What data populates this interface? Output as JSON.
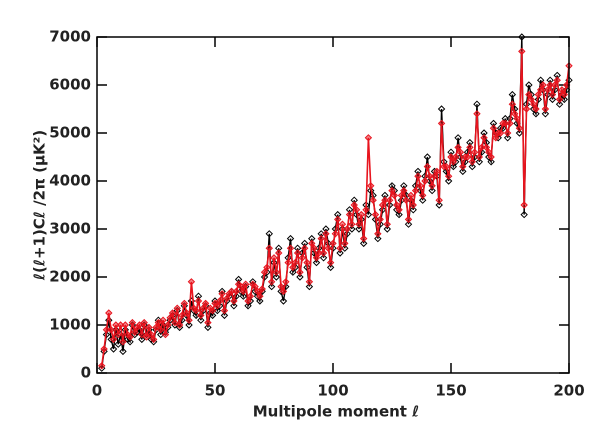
{
  "chart_data": {
    "type": "line",
    "xlabel": "Multipole moment ℓ",
    "ylabel": "ℓ(ℓ+1)Cℓ /2π (μK²)",
    "xlim": [
      0,
      200
    ],
    "ylim": [
      0,
      7000
    ],
    "xticks": [
      0,
      50,
      100,
      150,
      200
    ],
    "yticks": [
      0,
      1000,
      2000,
      3000,
      4000,
      5000,
      6000,
      7000
    ],
    "x": [
      2,
      3,
      4,
      5,
      6,
      7,
      8,
      9,
      10,
      11,
      12,
      13,
      14,
      15,
      16,
      17,
      18,
      19,
      20,
      21,
      22,
      23,
      24,
      25,
      26,
      27,
      28,
      29,
      30,
      31,
      32,
      33,
      34,
      35,
      36,
      37,
      38,
      39,
      40,
      41,
      42,
      43,
      44,
      45,
      46,
      47,
      48,
      49,
      50,
      51,
      52,
      53,
      54,
      55,
      56,
      57,
      58,
      59,
      60,
      61,
      62,
      63,
      64,
      65,
      66,
      67,
      68,
      69,
      70,
      71,
      72,
      73,
      74,
      75,
      76,
      77,
      78,
      79,
      80,
      81,
      82,
      83,
      84,
      85,
      86,
      87,
      88,
      89,
      90,
      91,
      92,
      93,
      94,
      95,
      96,
      97,
      98,
      99,
      100,
      101,
      102,
      103,
      104,
      105,
      106,
      107,
      108,
      109,
      110,
      111,
      112,
      113,
      114,
      115,
      116,
      117,
      118,
      119,
      120,
      121,
      122,
      123,
      124,
      125,
      126,
      127,
      128,
      129,
      130,
      131,
      132,
      133,
      134,
      135,
      136,
      137,
      138,
      139,
      140,
      141,
      142,
      143,
      144,
      145,
      146,
      147,
      148,
      149,
      150,
      151,
      152,
      153,
      154,
      155,
      156,
      157,
      158,
      159,
      160,
      161,
      162,
      163,
      164,
      165,
      166,
      167,
      168,
      169,
      170,
      171,
      172,
      173,
      174,
      175,
      176,
      177,
      178,
      179,
      180,
      181,
      182,
      183,
      184,
      185,
      186,
      187,
      188,
      189,
      190,
      191,
      192,
      193,
      194,
      195,
      196,
      197,
      198,
      199,
      200
    ],
    "series": [
      {
        "color": "#000000",
        "values": [
          100,
          450,
          800,
          1100,
          700,
          500,
          900,
          600,
          800,
          450,
          900,
          700,
          650,
          1000,
          800,
          850,
          900,
          700,
          1000,
          800,
          900,
          700,
          650,
          900,
          1100,
          800,
          1000,
          850,
          950,
          1100,
          1200,
          1000,
          1300,
          950,
          1100,
          1400,
          1200,
          1000,
          1500,
          1300,
          1200,
          1600,
          1100,
          1300,
          1400,
          950,
          1250,
          1200,
          1500,
          1300,
          1400,
          1700,
          1200,
          1500,
          1600,
          1700,
          1400,
          1600,
          1950,
          1700,
          1600,
          1800,
          1400,
          1500,
          1900,
          1700,
          1600,
          1500,
          1700,
          2000,
          2100,
          2900,
          1800,
          2300,
          2000,
          2600,
          1700,
          1500,
          1800,
          2400,
          2800,
          2100,
          2200,
          2600,
          2000,
          2500,
          2700,
          2200,
          1800,
          2800,
          2500,
          2300,
          2600,
          2900,
          2400,
          3000,
          2700,
          2200,
          2600,
          3000,
          3300,
          2500,
          3000,
          2600,
          2900,
          3400,
          3000,
          3600,
          3300,
          3000,
          3200,
          2700,
          3500,
          3300,
          3800,
          3700,
          3200,
          2800,
          3100,
          3400,
          3700,
          3000,
          3500,
          3900,
          3800,
          3400,
          3300,
          3600,
          3900,
          3700,
          3100,
          3600,
          3400,
          3900,
          4200,
          3800,
          3600,
          4100,
          4500,
          4000,
          3800,
          4200,
          4100,
          3500,
          5500,
          4400,
          4200,
          4000,
          4600,
          4300,
          4400,
          4900,
          4500,
          4200,
          4400,
          4600,
          4800,
          4300,
          4500,
          5600,
          4400,
          4600,
          5000,
          4800,
          4500,
          4400,
          5200,
          5000,
          4900,
          5100,
          5100,
          5300,
          4900,
          5300,
          5800,
          5500,
          5200,
          5000,
          7000,
          3300,
          5600,
          6000,
          5800,
          5500,
          5400,
          5700,
          6100,
          5900,
          5400,
          5800,
          6100,
          5700,
          5900,
          6200,
          5600,
          5800,
          5700,
          5900,
          6100
        ]
      },
      {
        "color": "#e8141e",
        "values": [
          150,
          500,
          900,
          1250,
          900,
          700,
          1000,
          800,
          1000,
          650,
          1000,
          800,
          750,
          1050,
          850,
          950,
          1000,
          800,
          1050,
          750,
          950,
          800,
          700,
          950,
          1050,
          900,
          1100,
          800,
          1000,
          1150,
          1250,
          1050,
          1350,
          1000,
          1200,
          1450,
          1250,
          1100,
          1900,
          1350,
          1300,
          1500,
          1200,
          1350,
          1450,
          1050,
          1350,
          1300,
          1450,
          1400,
          1500,
          1650,
          1300,
          1550,
          1650,
          1700,
          1500,
          1700,
          1850,
          1800,
          1700,
          1850,
          1500,
          1600,
          1850,
          1800,
          1700,
          1600,
          1750,
          2100,
          2200,
          2600,
          1900,
          2400,
          2100,
          2500,
          1800,
          1700,
          1900,
          2300,
          2600,
          2200,
          2300,
          2500,
          2100,
          2400,
          2600,
          2300,
          1900,
          2700,
          2600,
          2400,
          2500,
          2800,
          2500,
          2900,
          2600,
          2300,
          2700,
          2900,
          3200,
          2600,
          3100,
          2700,
          3000,
          3300,
          3100,
          3500,
          3400,
          3100,
          3300,
          2800,
          3400,
          4900,
          3900,
          3600,
          3300,
          2900,
          3200,
          3500,
          3600,
          3100,
          3600,
          3800,
          3700,
          3500,
          3400,
          3700,
          3800,
          3600,
          3200,
          3700,
          3500,
          3800,
          4100,
          3900,
          3700,
          4000,
          4300,
          4100,
          3900,
          4100,
          4200,
          3600,
          5200,
          4300,
          4300,
          4100,
          4500,
          4400,
          4500,
          4700,
          4600,
          4300,
          4500,
          4500,
          4700,
          4400,
          4600,
          5400,
          4500,
          4700,
          4900,
          4700,
          4600,
          4500,
          5100,
          4900,
          5000,
          5000,
          5200,
          5200,
          5000,
          5200,
          5600,
          5400,
          5300,
          5100,
          6700,
          3500,
          5500,
          5800,
          5700,
          5600,
          5500,
          5800,
          5900,
          6000,
          5500,
          5900,
          6000,
          5800,
          6000,
          6100,
          5700,
          5900,
          5800,
          6000,
          6400
        ]
      }
    ]
  }
}
